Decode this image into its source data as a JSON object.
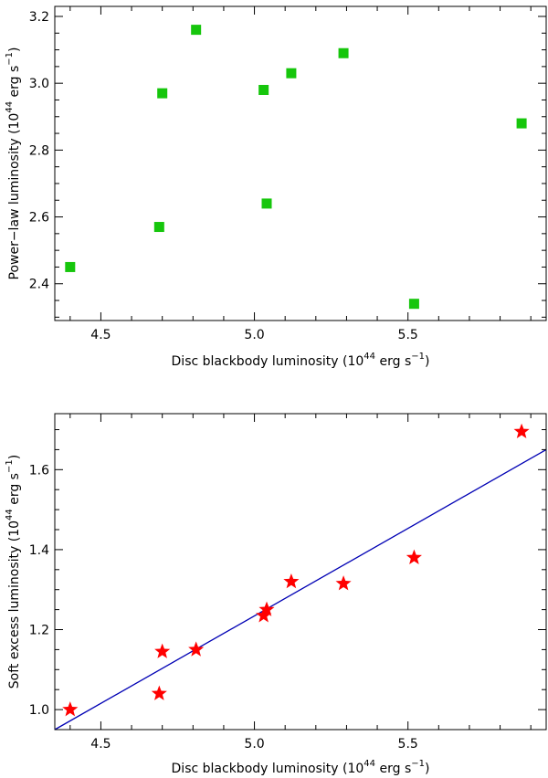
{
  "chart_data": [
    {
      "type": "scatter",
      "name": "top",
      "marker": "square",
      "color": "#16c60c",
      "xlabel_main": "Disc blackbody luminosity (10",
      "xlabel_exp": "44",
      "xlabel_unit": " erg s",
      "xlabel_unit_exp": "−1",
      "xlabel_close": ")",
      "ylabel_main": "Power−law luminosity (10",
      "ylabel_exp": "44",
      "ylabel_unit": " erg s",
      "ylabel_unit_exp": "−1",
      "ylabel_close": ")",
      "xlim": [
        4.35,
        5.95
      ],
      "ylim": [
        2.29,
        3.23
      ],
      "xticks": [
        4.5,
        5.0,
        5.5
      ],
      "xtick_labels": [
        "4.5",
        "5.0",
        "5.5"
      ],
      "yticks": [
        2.4,
        2.6,
        2.8,
        3.0,
        3.2
      ],
      "ytick_labels": [
        "2.4",
        "2.6",
        "2.8",
        "3.0",
        "3.2"
      ],
      "x": [
        4.4,
        4.69,
        4.7,
        4.81,
        5.03,
        5.04,
        5.12,
        5.29,
        5.52,
        5.87
      ],
      "y": [
        2.45,
        2.57,
        2.97,
        3.16,
        2.98,
        2.64,
        3.03,
        3.09,
        2.34,
        2.88
      ]
    },
    {
      "type": "scatter",
      "name": "bottom",
      "marker": "star",
      "color": "#ff0000",
      "fit_line": {
        "color": "#0000b4",
        "x": [
          4.35,
          5.95
        ],
        "y": [
          0.95,
          1.65
        ]
      },
      "xlabel_main": "Disc blackbody luminosity (10",
      "xlabel_exp": "44",
      "xlabel_unit": " erg s",
      "xlabel_unit_exp": "−1",
      "xlabel_close": ")",
      "ylabel_main": "Soft excess luminosity (10",
      "ylabel_exp": "44",
      "ylabel_unit": " erg s",
      "ylabel_unit_exp": "−1",
      "ylabel_close": ")",
      "xlim": [
        4.35,
        5.95
      ],
      "ylim": [
        0.95,
        1.74
      ],
      "xticks": [
        4.5,
        5.0,
        5.5
      ],
      "xtick_labels": [
        "4.5",
        "5.0",
        "5.5"
      ],
      "yticks": [
        1.0,
        1.2,
        1.4,
        1.6
      ],
      "ytick_labels": [
        "1.0",
        "1.2",
        "1.4",
        "1.6"
      ],
      "x": [
        4.4,
        4.69,
        4.7,
        4.81,
        5.03,
        5.04,
        5.12,
        5.29,
        5.52,
        5.87
      ],
      "y": [
        1.0,
        1.04,
        1.145,
        1.15,
        1.235,
        1.25,
        1.32,
        1.315,
        1.38,
        1.695
      ]
    }
  ]
}
